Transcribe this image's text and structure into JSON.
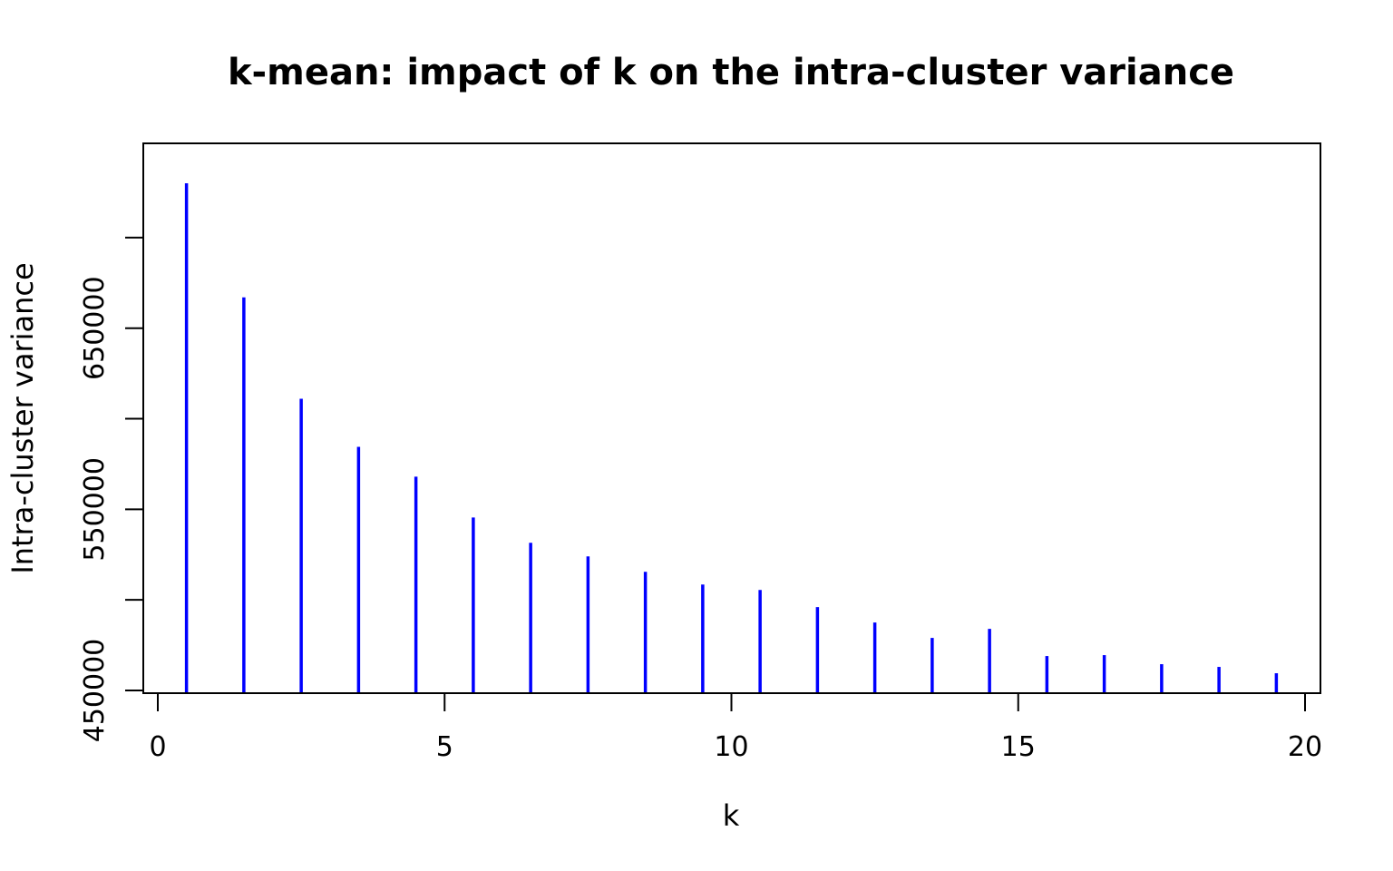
{
  "chart_data": {
    "type": "bar",
    "title": "k-mean: impact of k on the intra-cluster variance",
    "xlabel": "k",
    "ylabel": "Intra-cluster variance",
    "xlim": [
      0,
      20
    ],
    "ylim": [
      450000,
      740000
    ],
    "x_ticks": [
      0,
      5,
      10,
      15,
      20
    ],
    "x_tick_labels": [
      "0",
      "5",
      "10",
      "15",
      "20"
    ],
    "y_ticks": [
      450000,
      500000,
      550000,
      600000,
      650000,
      700000
    ],
    "y_tick_labels": [
      "450000",
      "",
      "550000",
      "",
      "650000",
      ""
    ],
    "series": [
      {
        "color": "#0000ff",
        "x": [
          0.5,
          1.5,
          2.5,
          3.5,
          4.5,
          5.5,
          6.5,
          7.5,
          8.5,
          9.5,
          10.5,
          11.5,
          12.5,
          13.5,
          14.5,
          15.5,
          16.5,
          17.5,
          18.5,
          19.5
        ],
        "values": [
          730000,
          667000,
          611000,
          584500,
          568000,
          545500,
          531500,
          524000,
          515500,
          508500,
          505500,
          496000,
          487500,
          479000,
          484000,
          469000,
          469500,
          464500,
          463000,
          459500
        ]
      }
    ],
    "grid": false,
    "legend": "none"
  }
}
